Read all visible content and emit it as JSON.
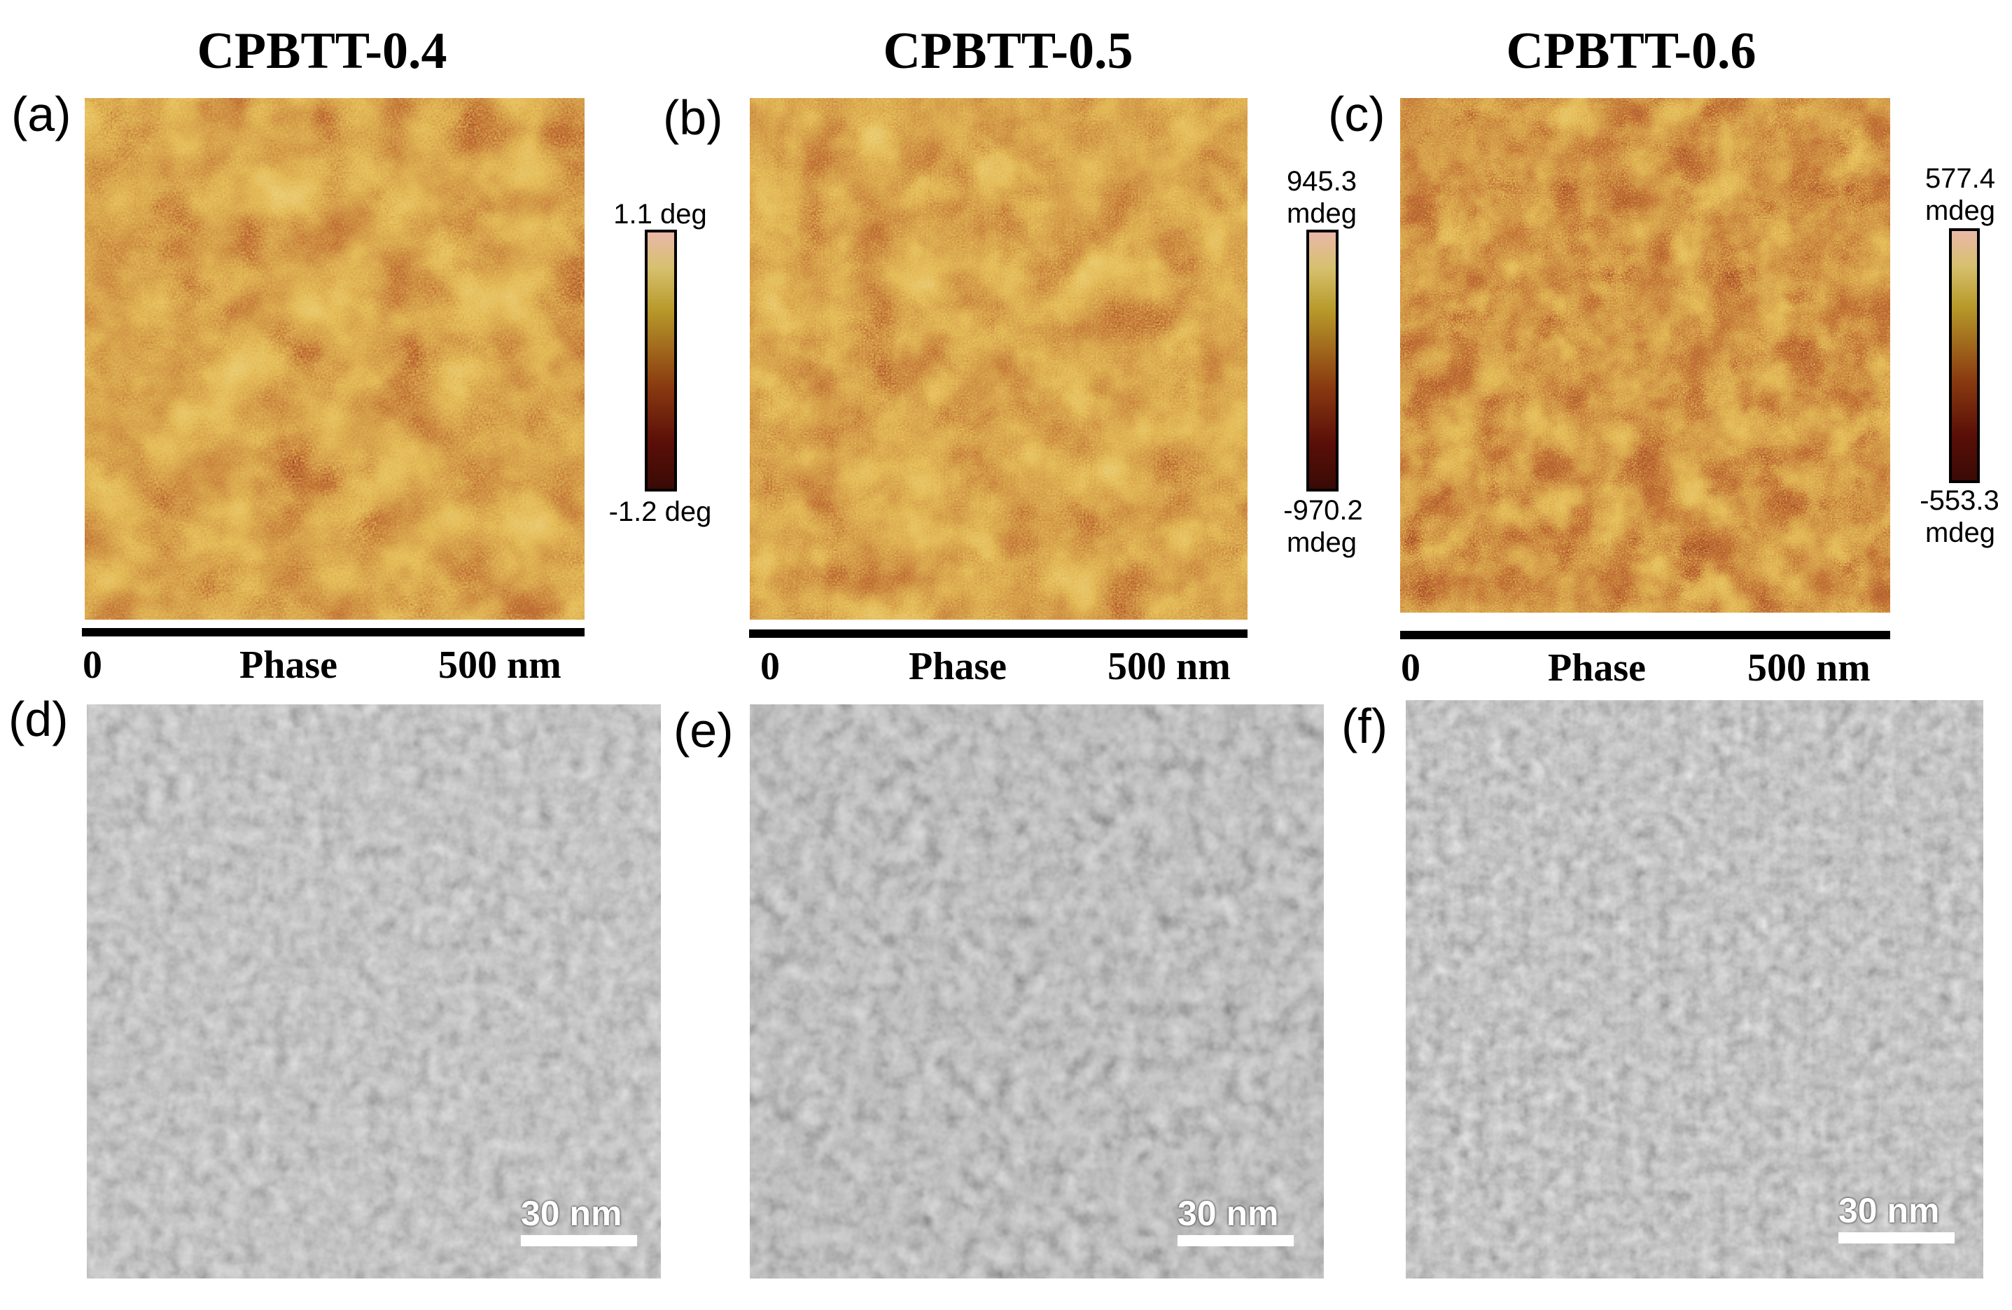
{
  "columns": [
    {
      "title": "CPBTT-0.4",
      "afm": {
        "label": "(a)",
        "colorbar": {
          "max": "1.1 deg",
          "max_unit": "",
          "min": "-1.2 deg",
          "min_unit": ""
        },
        "axis": {
          "start": "0",
          "label": "Phase",
          "end": "500 nm"
        }
      },
      "tem": {
        "label": "(d)",
        "scale": "30 nm"
      }
    },
    {
      "title": "CPBTT-0.5",
      "afm": {
        "label": "(b)",
        "colorbar": {
          "max": "945.3",
          "max_unit": "mdeg",
          "min": "-970.2",
          "min_unit": "mdeg"
        },
        "axis": {
          "start": "0",
          "label": "Phase",
          "end": "500 nm"
        }
      },
      "tem": {
        "label": "(e)",
        "scale": "30 nm"
      }
    },
    {
      "title": "CPBTT-0.6",
      "afm": {
        "label": "(c)",
        "colorbar": {
          "max": "577.4",
          "max_unit": "mdeg",
          "min": "-553.3",
          "min_unit": "mdeg"
        },
        "axis": {
          "start": "0",
          "label": "Phase",
          "end": "500 nm"
        }
      },
      "tem": {
        "label": "(f)",
        "scale": "30 nm"
      }
    }
  ],
  "colors": {
    "afm_dark": "#6e1a06",
    "afm_mid": "#a8782a",
    "afm_light": "#d8c36a",
    "tem_base": "#8c8c8c"
  }
}
